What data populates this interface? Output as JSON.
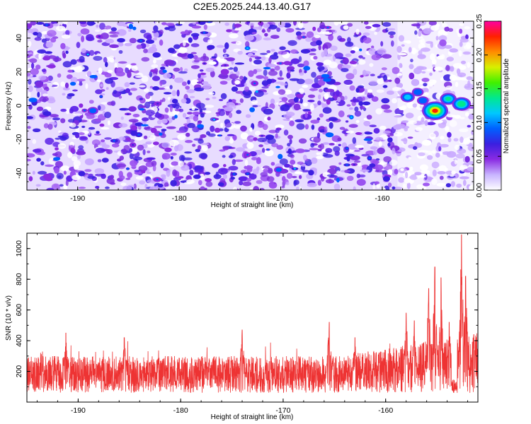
{
  "title": "C2E5.2025.244.13.40.G17",
  "chart_data": [
    {
      "type": "heatmap",
      "xlabel": "Height of straight line (km)",
      "ylabel": "Frequency (Hz)",
      "xlim": [
        -195,
        -151
      ],
      "ylim": [
        -50,
        50
      ],
      "xticks": [
        -190,
        -180,
        -170,
        -160
      ],
      "yticks": [
        -40,
        -20,
        0,
        20,
        40
      ],
      "colorbar": {
        "label": "Normalized spectral amplitude",
        "range": [
          0,
          0.25
        ],
        "ticks": [
          "0.00",
          "0.05",
          "0.10",
          "0.15",
          "0.20",
          "0.25"
        ],
        "colors": [
          "#ffffff",
          "#c8b4ff",
          "#8a2be2",
          "#3b1fe0",
          "#0060ff",
          "#00c8ff",
          "#00e890",
          "#40f000",
          "#d8f000",
          "#ff8c00",
          "#ff2000",
          "#ff00a0"
        ]
      },
      "hotspots": [
        {
          "x": -157.5,
          "y": 5,
          "value": 0.12
        },
        {
          "x": -156.0,
          "y": 3,
          "value": 0.1
        },
        {
          "x": -154.8,
          "y": -3,
          "value": 0.22
        },
        {
          "x": -153.5,
          "y": 4,
          "value": 0.14
        },
        {
          "x": -152.2,
          "y": 1,
          "value": 0.16
        },
        {
          "x": -156.5,
          "y": 8,
          "value": 0.1
        },
        {
          "x": -188.5,
          "y": -3,
          "value": 0.09
        },
        {
          "x": -170.2,
          "y": -38,
          "value": 0.08
        },
        {
          "x": -175.5,
          "y": 20,
          "value": 0.07
        },
        {
          "x": -193.0,
          "y": -42,
          "value": 0.07
        }
      ],
      "background_level": 0.04,
      "quiet_band_x": [
        -158.5,
        -151
      ]
    },
    {
      "type": "line",
      "xlabel": "Height of straight line (km)",
      "ylabel": "SNR (10 * v/v)",
      "xlim": [
        -195,
        -151
      ],
      "ylim": [
        0,
        1100
      ],
      "xticks": [
        -190,
        -180,
        -170,
        -160
      ],
      "yticks": [
        200,
        400,
        600,
        800,
        1000
      ],
      "line_color": "#ee3333",
      "baseline_range": [
        60,
        300
      ],
      "peaks": [
        {
          "x": -191.2,
          "y": 450
        },
        {
          "x": -185.5,
          "y": 420
        },
        {
          "x": -174.0,
          "y": 470
        },
        {
          "x": -165.5,
          "y": 520
        },
        {
          "x": -163.0,
          "y": 420
        },
        {
          "x": -158.0,
          "y": 580
        },
        {
          "x": -157.2,
          "y": 530
        },
        {
          "x": -155.8,
          "y": 740
        },
        {
          "x": -155.2,
          "y": 880
        },
        {
          "x": -154.6,
          "y": 810
        },
        {
          "x": -153.8,
          "y": 520
        },
        {
          "x": -152.6,
          "y": 1090
        },
        {
          "x": -152.2,
          "y": 820
        },
        {
          "x": -151.4,
          "y": 440
        }
      ]
    }
  ]
}
